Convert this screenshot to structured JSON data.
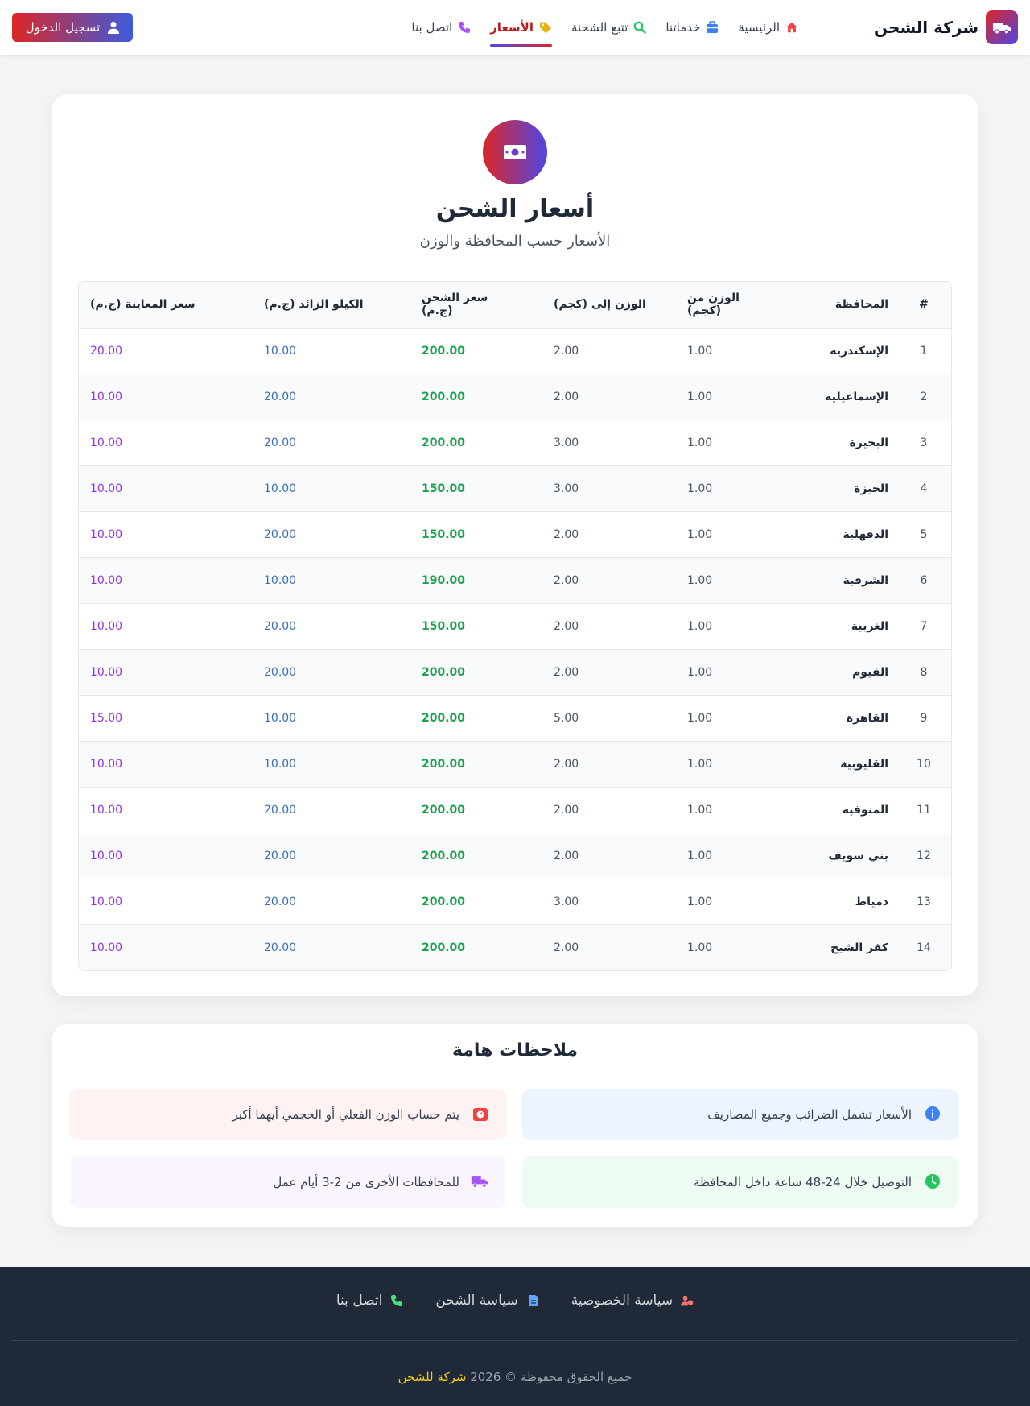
{
  "brand": {
    "name": "شركة الشحن",
    "icon": "truck-icon"
  },
  "nav": {
    "items": [
      {
        "label": "الرئيسية",
        "icon": "home-icon",
        "color": "#ef4444"
      },
      {
        "label": "خدماتنا",
        "icon": "briefcase-icon",
        "color": "#3b82f6"
      },
      {
        "label": "تتبع الشحنة",
        "icon": "search-icon",
        "color": "#22c55e"
      },
      {
        "label": "الأسعار",
        "icon": "tag-icon",
        "color": "#eab308",
        "active": true
      },
      {
        "label": "اتصل بنا",
        "icon": "phone-icon",
        "color": "#a855f7"
      }
    ],
    "login_label": "تسجيل الدخول"
  },
  "prices": {
    "title": "أسعار الشحن",
    "subtitle": "الأسعار حسب المحافظة والوزن",
    "hero_icon": "money-bill-icon",
    "columns": [
      "#",
      "المحافظة",
      "الوزن من (كجم)",
      "الوزن إلى (كجم)",
      "سعر الشحن (ج.م)",
      "الكيلو الزائد (ج.م)",
      "سعر المعاينة (ج.م)"
    ],
    "rows": [
      [
        "1",
        "الإسكندرية",
        "1.00",
        "2.00",
        "200.00",
        "10.00",
        "20.00"
      ],
      [
        "2",
        "الإسماعيلية",
        "1.00",
        "2.00",
        "200.00",
        "20.00",
        "10.00"
      ],
      [
        "3",
        "البحيرة",
        "1.00",
        "3.00",
        "200.00",
        "20.00",
        "10.00"
      ],
      [
        "4",
        "الجيزة",
        "1.00",
        "3.00",
        "150.00",
        "10.00",
        "10.00"
      ],
      [
        "5",
        "الدقهلية",
        "1.00",
        "2.00",
        "150.00",
        "20.00",
        "10.00"
      ],
      [
        "6",
        "الشرقية",
        "1.00",
        "2.00",
        "190.00",
        "10.00",
        "10.00"
      ],
      [
        "7",
        "الغربية",
        "1.00",
        "2.00",
        "150.00",
        "20.00",
        "10.00"
      ],
      [
        "8",
        "الفيوم",
        "1.00",
        "2.00",
        "200.00",
        "20.00",
        "10.00"
      ],
      [
        "9",
        "القاهرة",
        "1.00",
        "5.00",
        "200.00",
        "10.00",
        "15.00"
      ],
      [
        "10",
        "القليوبية",
        "1.00",
        "2.00",
        "200.00",
        "10.00",
        "10.00"
      ],
      [
        "11",
        "المنوفية",
        "1.00",
        "2.00",
        "200.00",
        "20.00",
        "10.00"
      ],
      [
        "12",
        "بني سويف",
        "1.00",
        "2.00",
        "200.00",
        "20.00",
        "10.00"
      ],
      [
        "13",
        "دمياط",
        "1.00",
        "3.00",
        "200.00",
        "20.00",
        "10.00"
      ],
      [
        "14",
        "كفر الشيخ",
        "1.00",
        "2.00",
        "200.00",
        "20.00",
        "10.00"
      ]
    ]
  },
  "notes": {
    "title": "ملاحظات هامة",
    "items": [
      {
        "text": "الأسعار تشمل الضرائب وجميع المصاريف",
        "icon": "info-icon",
        "color": "#3b82f6"
      },
      {
        "text": "يتم حساب الوزن الفعلي أو الحجمي أيهما أكبر",
        "icon": "weight-icon",
        "color": "#ef4444"
      },
      {
        "text": "التوصيل خلال 24-48 ساعة داخل المحافظة",
        "icon": "clock-icon",
        "color": "#22c55e"
      },
      {
        "text": "للمحافظات الأخرى من 2-3 أيام عمل",
        "icon": "truck-icon",
        "color": "#a855f7"
      }
    ]
  },
  "footer": {
    "links": [
      {
        "label": "سياسة الخصوصية",
        "icon": "user-shield-icon",
        "color": "#f87171"
      },
      {
        "label": "سياسة الشحن",
        "icon": "file-icon",
        "color": "#60a5fa"
      },
      {
        "label": "اتصل بنا",
        "icon": "phone-icon",
        "color": "#4ade80"
      }
    ],
    "copyright": "جميع الحقوق محفوظة © 2026",
    "company": "شركة للشحن"
  }
}
